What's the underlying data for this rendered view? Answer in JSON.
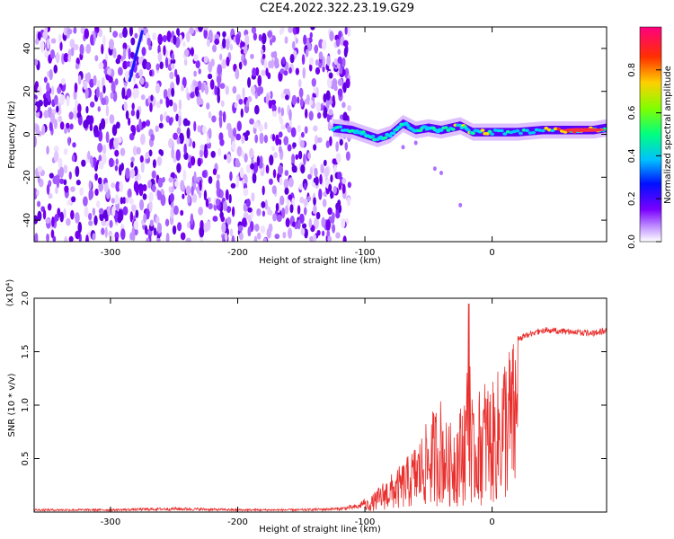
{
  "title": "C2E4.2022.322.23.19.G29",
  "chart_data": [
    {
      "type": "heatmap",
      "name": "spectrogram",
      "xlabel": "Height of straight line (km)",
      "ylabel": "Frequency (Hz)",
      "xlim": [
        -360,
        90
      ],
      "ylim": [
        -50,
        50
      ],
      "xticks": [
        -300,
        -200,
        -100,
        0
      ],
      "yticks": [
        -40,
        -20,
        0,
        20,
        40
      ],
      "colorbar": {
        "label": "Normalized spectral amplitude",
        "range": [
          0.0,
          1.0
        ],
        "ticks": [
          "0.0",
          "0.2",
          "0.4",
          "0.6",
          "0.8"
        ],
        "colors": [
          "#ffffff",
          "#8800ff",
          "#0000ff",
          "#00e5ff",
          "#00ff66",
          "#ffff00",
          "#ff8800",
          "#ff0033",
          "#ff0088"
        ]
      },
      "noise_region": {
        "x_from": -360,
        "x_to": -120,
        "frequency_range": [
          -50,
          50
        ],
        "amplitude": 0.1
      },
      "signal_trace": [
        {
          "x": -125,
          "freq": 3,
          "amp": 0.35
        },
        {
          "x": -110,
          "freq": 2,
          "amp": 0.45
        },
        {
          "x": -100,
          "freq": 0,
          "amp": 0.55
        },
        {
          "x": -90,
          "freq": -2,
          "amp": 0.55
        },
        {
          "x": -80,
          "freq": 0,
          "amp": 0.5
        },
        {
          "x": -70,
          "freq": 5,
          "amp": 0.5
        },
        {
          "x": -60,
          "freq": 2,
          "amp": 0.55
        },
        {
          "x": -50,
          "freq": 3,
          "amp": 0.55
        },
        {
          "x": -40,
          "freq": 2,
          "amp": 0.5
        },
        {
          "x": -25,
          "freq": 4,
          "amp": 0.65
        },
        {
          "x": -15,
          "freq": 1,
          "amp": 0.7
        },
        {
          "x": 0,
          "freq": 1,
          "amp": 0.6
        },
        {
          "x": 20,
          "freq": 1,
          "amp": 0.55
        },
        {
          "x": 40,
          "freq": 2,
          "amp": 0.6
        },
        {
          "x": 60,
          "freq": 2,
          "amp": 0.85
        },
        {
          "x": 80,
          "freq": 2,
          "amp": 0.9
        },
        {
          "x": 90,
          "freq": 3,
          "amp": 0.6
        }
      ],
      "streak": {
        "from": {
          "x": -285,
          "freq": 25
        },
        "to": {
          "x": -275,
          "freq": 48
        }
      }
    },
    {
      "type": "line",
      "name": "snr",
      "xlabel": "Height of straight line (km)",
      "ylabel": "SNR (10 * v/v)",
      "yscale_label": "(x10⁴)",
      "xlim": [
        -360,
        90
      ],
      "ylim": [
        0,
        2.0
      ],
      "xticks": [
        -300,
        -200,
        -100,
        0
      ],
      "yticks": [
        "0.5",
        "1.0",
        "1.5",
        "2.0"
      ],
      "ytick_values": [
        0.5,
        1.0,
        1.5,
        2.0
      ],
      "color": "#e8302e",
      "envelope": {
        "x": [
          -360,
          -300,
          -250,
          -200,
          -150,
          -120,
          -105,
          -95,
          -85,
          -75,
          -65,
          -55,
          -45,
          -40,
          -35,
          -30,
          -25,
          -20,
          -18,
          -15,
          -10,
          -5,
          0,
          5,
          10,
          20,
          30,
          40,
          60,
          80,
          90
        ],
        "y": [
          0.02,
          0.02,
          0.03,
          0.02,
          0.02,
          0.03,
          0.05,
          0.15,
          0.3,
          0.4,
          0.55,
          0.75,
          1.0,
          1.1,
          0.8,
          0.9,
          1.0,
          1.3,
          1.95,
          0.9,
          1.15,
          1.3,
          1.2,
          1.35,
          1.55,
          1.65,
          1.7,
          1.73,
          1.72,
          1.7,
          1.73
        ]
      }
    }
  ]
}
